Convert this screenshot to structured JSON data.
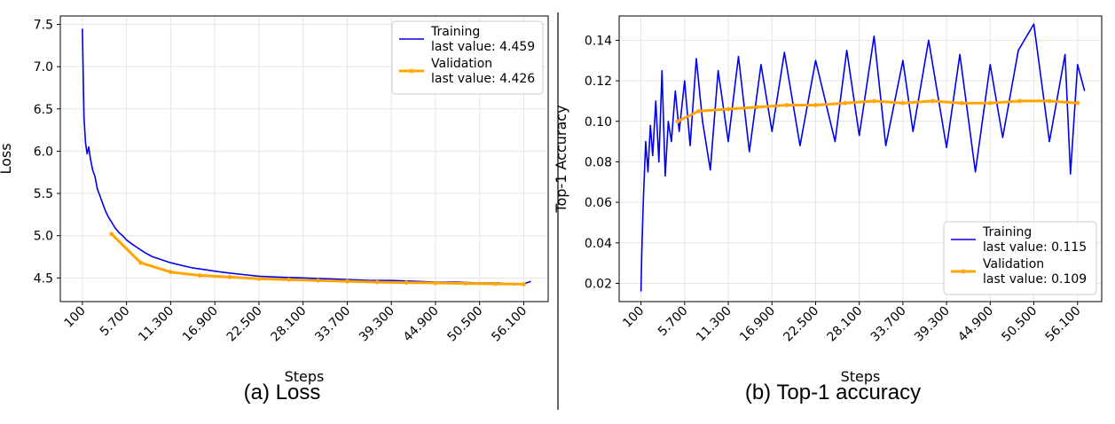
{
  "colors": {
    "training": "#0000ee",
    "validation": "#ffa500",
    "grid": "#e6e6e6",
    "divider": "#000000"
  },
  "chart_data": [
    {
      "id": "loss",
      "type": "line",
      "caption": "(a) Loss",
      "xlabel": "Steps",
      "ylabel": "Loss",
      "x_ticks": [
        "100",
        "5.700",
        "11.300",
        "16.900",
        "22.500",
        "28.100",
        "33.700",
        "39.300",
        "44.900",
        "50.500",
        "56.100"
      ],
      "x_tick_values": [
        100,
        5700,
        11300,
        16900,
        22500,
        28100,
        33700,
        39300,
        44900,
        50500,
        56100
      ],
      "xlim": [
        -2700,
        59200
      ],
      "y_ticks": [
        "4.5",
        "5.0",
        "5.5",
        "6.0",
        "6.5",
        "7.0",
        "7.5"
      ],
      "y_tick_values": [
        4.5,
        5.0,
        5.5,
        6.0,
        6.5,
        7.0,
        7.5
      ],
      "ylim": [
        4.22,
        7.6
      ],
      "grid": true,
      "legend_position": "top-right",
      "series": [
        {
          "name": "Training",
          "legend_sub": "last value: 4.459",
          "color": "#0000ee",
          "marker": false,
          "x": [
            100,
            200,
            300,
            500,
            700,
            900,
            1100,
            1400,
            1700,
            2000,
            2300,
            2600,
            3000,
            3400,
            3800,
            4200,
            4700,
            5200,
            5700,
            6400,
            7200,
            8000,
            9000,
            10000,
            11300,
            12600,
            14000,
            15500,
            16900,
            18500,
            20500,
            22500,
            25000,
            28100,
            31000,
            33700,
            36500,
            39300,
            42000,
            44900,
            47500,
            50500,
            53000,
            55000,
            56100,
            57000
          ],
          "y": [
            7.45,
            6.9,
            6.4,
            6.1,
            5.97,
            6.05,
            5.92,
            5.78,
            5.7,
            5.55,
            5.48,
            5.4,
            5.3,
            5.22,
            5.16,
            5.1,
            5.04,
            5.0,
            4.95,
            4.9,
            4.85,
            4.8,
            4.75,
            4.72,
            4.68,
            4.65,
            4.62,
            4.6,
            4.58,
            4.56,
            4.54,
            4.52,
            4.51,
            4.5,
            4.49,
            4.48,
            4.47,
            4.47,
            4.46,
            4.45,
            4.45,
            4.44,
            4.44,
            4.42,
            4.43,
            4.459
          ]
        },
        {
          "name": "Validation",
          "legend_sub": "last value: 4.426",
          "color": "#ffa500",
          "marker": true,
          "x": [
            3800,
            7500,
            11300,
            15000,
            18800,
            22500,
            26300,
            30000,
            33700,
            37500,
            41200,
            44900,
            48700,
            52500,
            56100
          ],
          "y": [
            5.02,
            4.68,
            4.57,
            4.53,
            4.51,
            4.49,
            4.48,
            4.47,
            4.46,
            4.45,
            4.445,
            4.44,
            4.435,
            4.43,
            4.426
          ]
        }
      ]
    },
    {
      "id": "accuracy",
      "type": "line",
      "caption": "(b) Top-1 accuracy",
      "xlabel": "Steps",
      "ylabel": "Top-1 Accuracy",
      "x_ticks": [
        "100",
        "5.700",
        "11.300",
        "16.900",
        "22.500",
        "28.100",
        "33.700",
        "39.300",
        "44.900",
        "50.500",
        "56.100"
      ],
      "x_tick_values": [
        100,
        5700,
        11300,
        16900,
        22500,
        28100,
        33700,
        39300,
        44900,
        50500,
        56100
      ],
      "xlim": [
        -2700,
        59200
      ],
      "y_ticks": [
        "0.02",
        "0.04",
        "0.06",
        "0.08",
        "0.10",
        "0.12",
        "0.14"
      ],
      "y_tick_values": [
        0.02,
        0.04,
        0.06,
        0.08,
        0.1,
        0.12,
        0.14
      ],
      "ylim": [
        0.011,
        0.152
      ],
      "grid": true,
      "legend_position": "bottom-right",
      "series": [
        {
          "name": "Training",
          "legend_sub": "last value: 0.115",
          "color": "#0000ee",
          "marker": false,
          "x": [
            100,
            200,
            400,
            700,
            1000,
            1300,
            1600,
            2000,
            2400,
            2800,
            3200,
            3600,
            4000,
            4500,
            5000,
            5700,
            6400,
            7200,
            8000,
            9000,
            10000,
            11300,
            12600,
            14000,
            15500,
            16900,
            18500,
            20500,
            22500,
            25000,
            26500,
            28100,
            30000,
            31500,
            33700,
            35000,
            37000,
            39300,
            41000,
            43000,
            44900,
            46500,
            48500,
            50500,
            52500,
            54500,
            55200,
            56100,
            57000
          ],
          "y": [
            0.016,
            0.035,
            0.06,
            0.09,
            0.075,
            0.098,
            0.083,
            0.11,
            0.08,
            0.125,
            0.073,
            0.1,
            0.09,
            0.115,
            0.095,
            0.12,
            0.088,
            0.131,
            0.1,
            0.076,
            0.125,
            0.09,
            0.132,
            0.085,
            0.128,
            0.095,
            0.134,
            0.088,
            0.13,
            0.09,
            0.135,
            0.093,
            0.142,
            0.088,
            0.13,
            0.095,
            0.14,
            0.087,
            0.133,
            0.075,
            0.128,
            0.092,
            0.135,
            0.148,
            0.09,
            0.133,
            0.074,
            0.128,
            0.115
          ]
        },
        {
          "name": "Validation",
          "legend_sub": "last value: 0.109",
          "color": "#ffa500",
          "marker": true,
          "x": [
            4800,
            7500,
            11300,
            15000,
            18800,
            22500,
            26300,
            30000,
            33700,
            37500,
            41200,
            44900,
            48700,
            52500,
            56100
          ],
          "y": [
            0.1,
            0.105,
            0.106,
            0.107,
            0.108,
            0.108,
            0.109,
            0.11,
            0.109,
            0.11,
            0.109,
            0.109,
            0.11,
            0.11,
            0.109
          ]
        }
      ]
    }
  ]
}
